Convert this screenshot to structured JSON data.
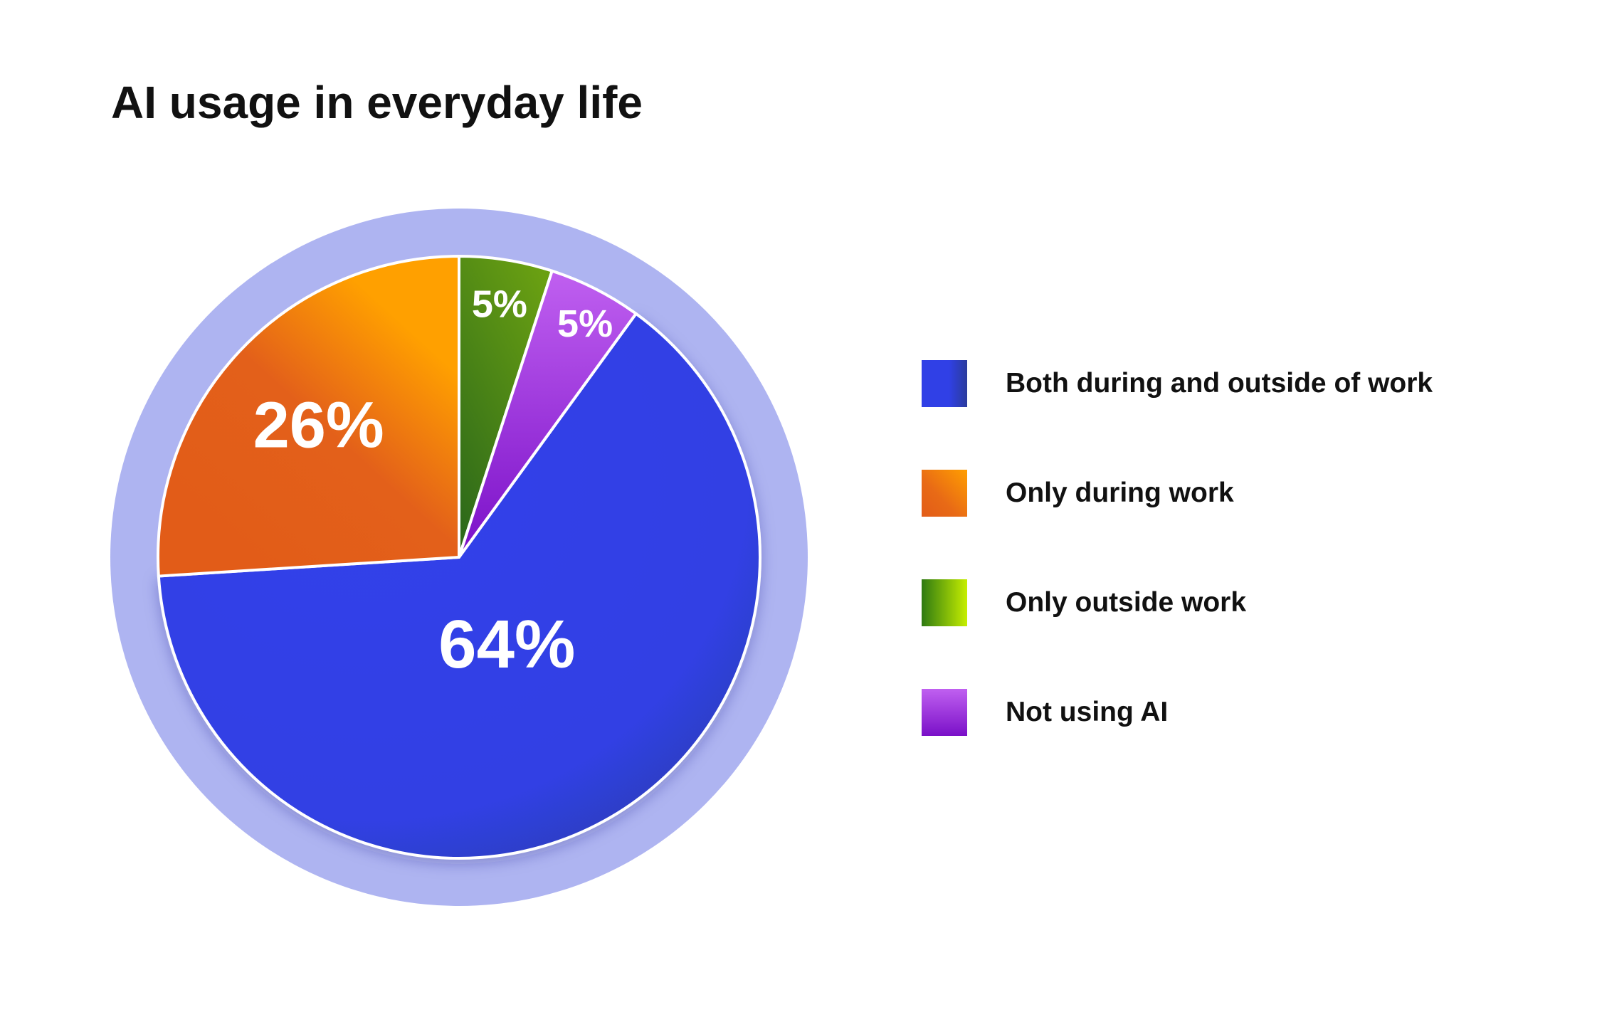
{
  "chart_data": {
    "type": "pie",
    "title": "AI usage in everyday life",
    "categories": [
      "Both during and outside of work",
      "Only during work",
      "Only outside work",
      "Not using AI"
    ],
    "values": [
      64,
      26,
      5,
      5
    ],
    "value_labels": [
      "64%",
      "26%",
      "5%",
      "5%"
    ],
    "colors": [
      "#3040e6",
      "#ee7418",
      "#4f9417",
      "#9a28d8"
    ],
    "legend_position": "right"
  }
}
